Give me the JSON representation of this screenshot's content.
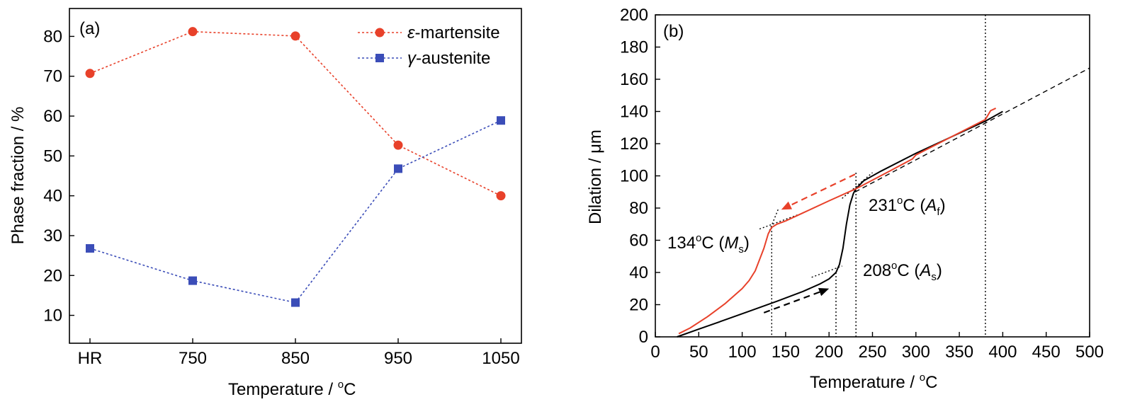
{
  "colors": {
    "martensite": "#e8412a",
    "austenite": "#3b4db8",
    "heating": "#000000",
    "cooling": "#e8412a"
  },
  "chart_data": [
    {
      "type": "line",
      "panel_label": "(a)",
      "xlabel_text": "Temperature / ",
      "xlabel_sup": "o",
      "xlabel_unit": "C",
      "ylabel": "Phase fraction / %",
      "categories": [
        "HR",
        "750",
        "850",
        "950",
        "1050"
      ],
      "ylim": [
        3,
        87
      ],
      "yticks": [
        10,
        20,
        30,
        40,
        50,
        60,
        70,
        80
      ],
      "legend_position": "top-right",
      "series": [
        {
          "name_prefix": "ε",
          "name_suffix": "-martensite",
          "marker": "circle",
          "color": "#e8412a",
          "values": [
            70.7,
            81.2,
            80.1,
            52.7,
            40.0
          ]
        },
        {
          "name_prefix": "γ",
          "name_suffix": "-austenite",
          "marker": "square",
          "color": "#3b4db8",
          "values": [
            26.8,
            18.7,
            13.2,
            46.8,
            58.9
          ]
        }
      ]
    },
    {
      "type": "line",
      "panel_label": "(b)",
      "xlabel_text": "Temperature / ",
      "xlabel_sup": "o",
      "xlabel_unit": "C",
      "ylabel_text": "Dilation / ",
      "ylabel_unit": "μm",
      "xlim": [
        0,
        500
      ],
      "ylim": [
        0,
        200
      ],
      "xticks": [
        0,
        50,
        100,
        150,
        200,
        250,
        300,
        350,
        400,
        450,
        500
      ],
      "yticks": [
        0,
        20,
        40,
        60,
        80,
        100,
        120,
        140,
        160,
        180,
        200
      ],
      "series": [
        {
          "role": "heating",
          "color": "#000000",
          "points": [
            [
              25,
              0
            ],
            [
              50,
              4.8
            ],
            [
              80,
              10.5
            ],
            [
              110,
              16.3
            ],
            [
              140,
              22.1
            ],
            [
              170,
              28.2
            ],
            [
              190,
              33
            ],
            [
              200,
              36
            ],
            [
              208,
              40
            ],
            [
              212,
              45
            ],
            [
              216,
              55
            ],
            [
              220,
              70
            ],
            [
              224,
              82
            ],
            [
              228,
              89
            ],
            [
              231,
              92
            ],
            [
              240,
              97
            ],
            [
              260,
              103
            ],
            [
              300,
              114
            ],
            [
              340,
              124
            ],
            [
              380,
              134
            ],
            [
              400,
              140
            ]
          ]
        },
        {
          "role": "cooling",
          "color": "#e8412a",
          "points": [
            [
              392,
              142
            ],
            [
              386,
              140.5
            ],
            [
              380,
              135
            ],
            [
              340,
              124
            ],
            [
              300,
              113
            ],
            [
              296,
              110.5
            ],
            [
              270,
              103
            ],
            [
              231,
              92
            ],
            [
              200,
              84.5
            ],
            [
              170,
              77
            ],
            [
              150,
              72
            ],
            [
              140,
              70
            ],
            [
              134,
              68
            ],
            [
              130,
              64
            ],
            [
              125,
              55
            ],
            [
              120,
              48
            ],
            [
              115,
              41
            ],
            [
              108,
              35
            ],
            [
              100,
              30
            ],
            [
              80,
              20.5
            ],
            [
              60,
              12.5
            ],
            [
              40,
              5.5
            ],
            [
              27,
              2
            ]
          ]
        }
      ],
      "tangent_lines": [
        {
          "style": "dashed",
          "points": [
            [
              230,
              90
            ],
            [
              500,
              167
            ]
          ]
        },
        {
          "style": "dotted",
          "points": [
            [
              180,
              37
            ],
            [
              215,
              44
            ]
          ]
        },
        {
          "style": "dotted",
          "points": [
            [
              215,
              86
            ],
            [
              250,
              102
            ]
          ]
        },
        {
          "style": "dotted",
          "points": [
            [
              120,
              67
            ],
            [
              165,
              76
            ]
          ]
        },
        {
          "style": "dotted",
          "points": [
            [
              130,
              64
            ],
            [
              142,
              80
            ]
          ]
        }
      ],
      "vertical_markers": [
        134,
        208,
        231,
        380
      ],
      "arrows": [
        {
          "direction": "heating",
          "color": "#000000",
          "from": [
            125,
            15
          ],
          "to": [
            200,
            30
          ]
        },
        {
          "direction": "cooling",
          "color": "#e8412a",
          "from": [
            230,
            101
          ],
          "to": [
            145,
            79
          ]
        }
      ],
      "annotations": [
        {
          "temp": "134",
          "deg": "o",
          "unit": "C (",
          "symbol": "M",
          "subscript": "s",
          "close": ")"
        },
        {
          "temp": "231",
          "deg": "o",
          "unit": "C (",
          "symbol": "A",
          "subscript": "f",
          "close": ")"
        },
        {
          "temp": "208",
          "deg": "o",
          "unit": "C (",
          "symbol": "A",
          "subscript": "s",
          "close": ")"
        }
      ]
    }
  ]
}
